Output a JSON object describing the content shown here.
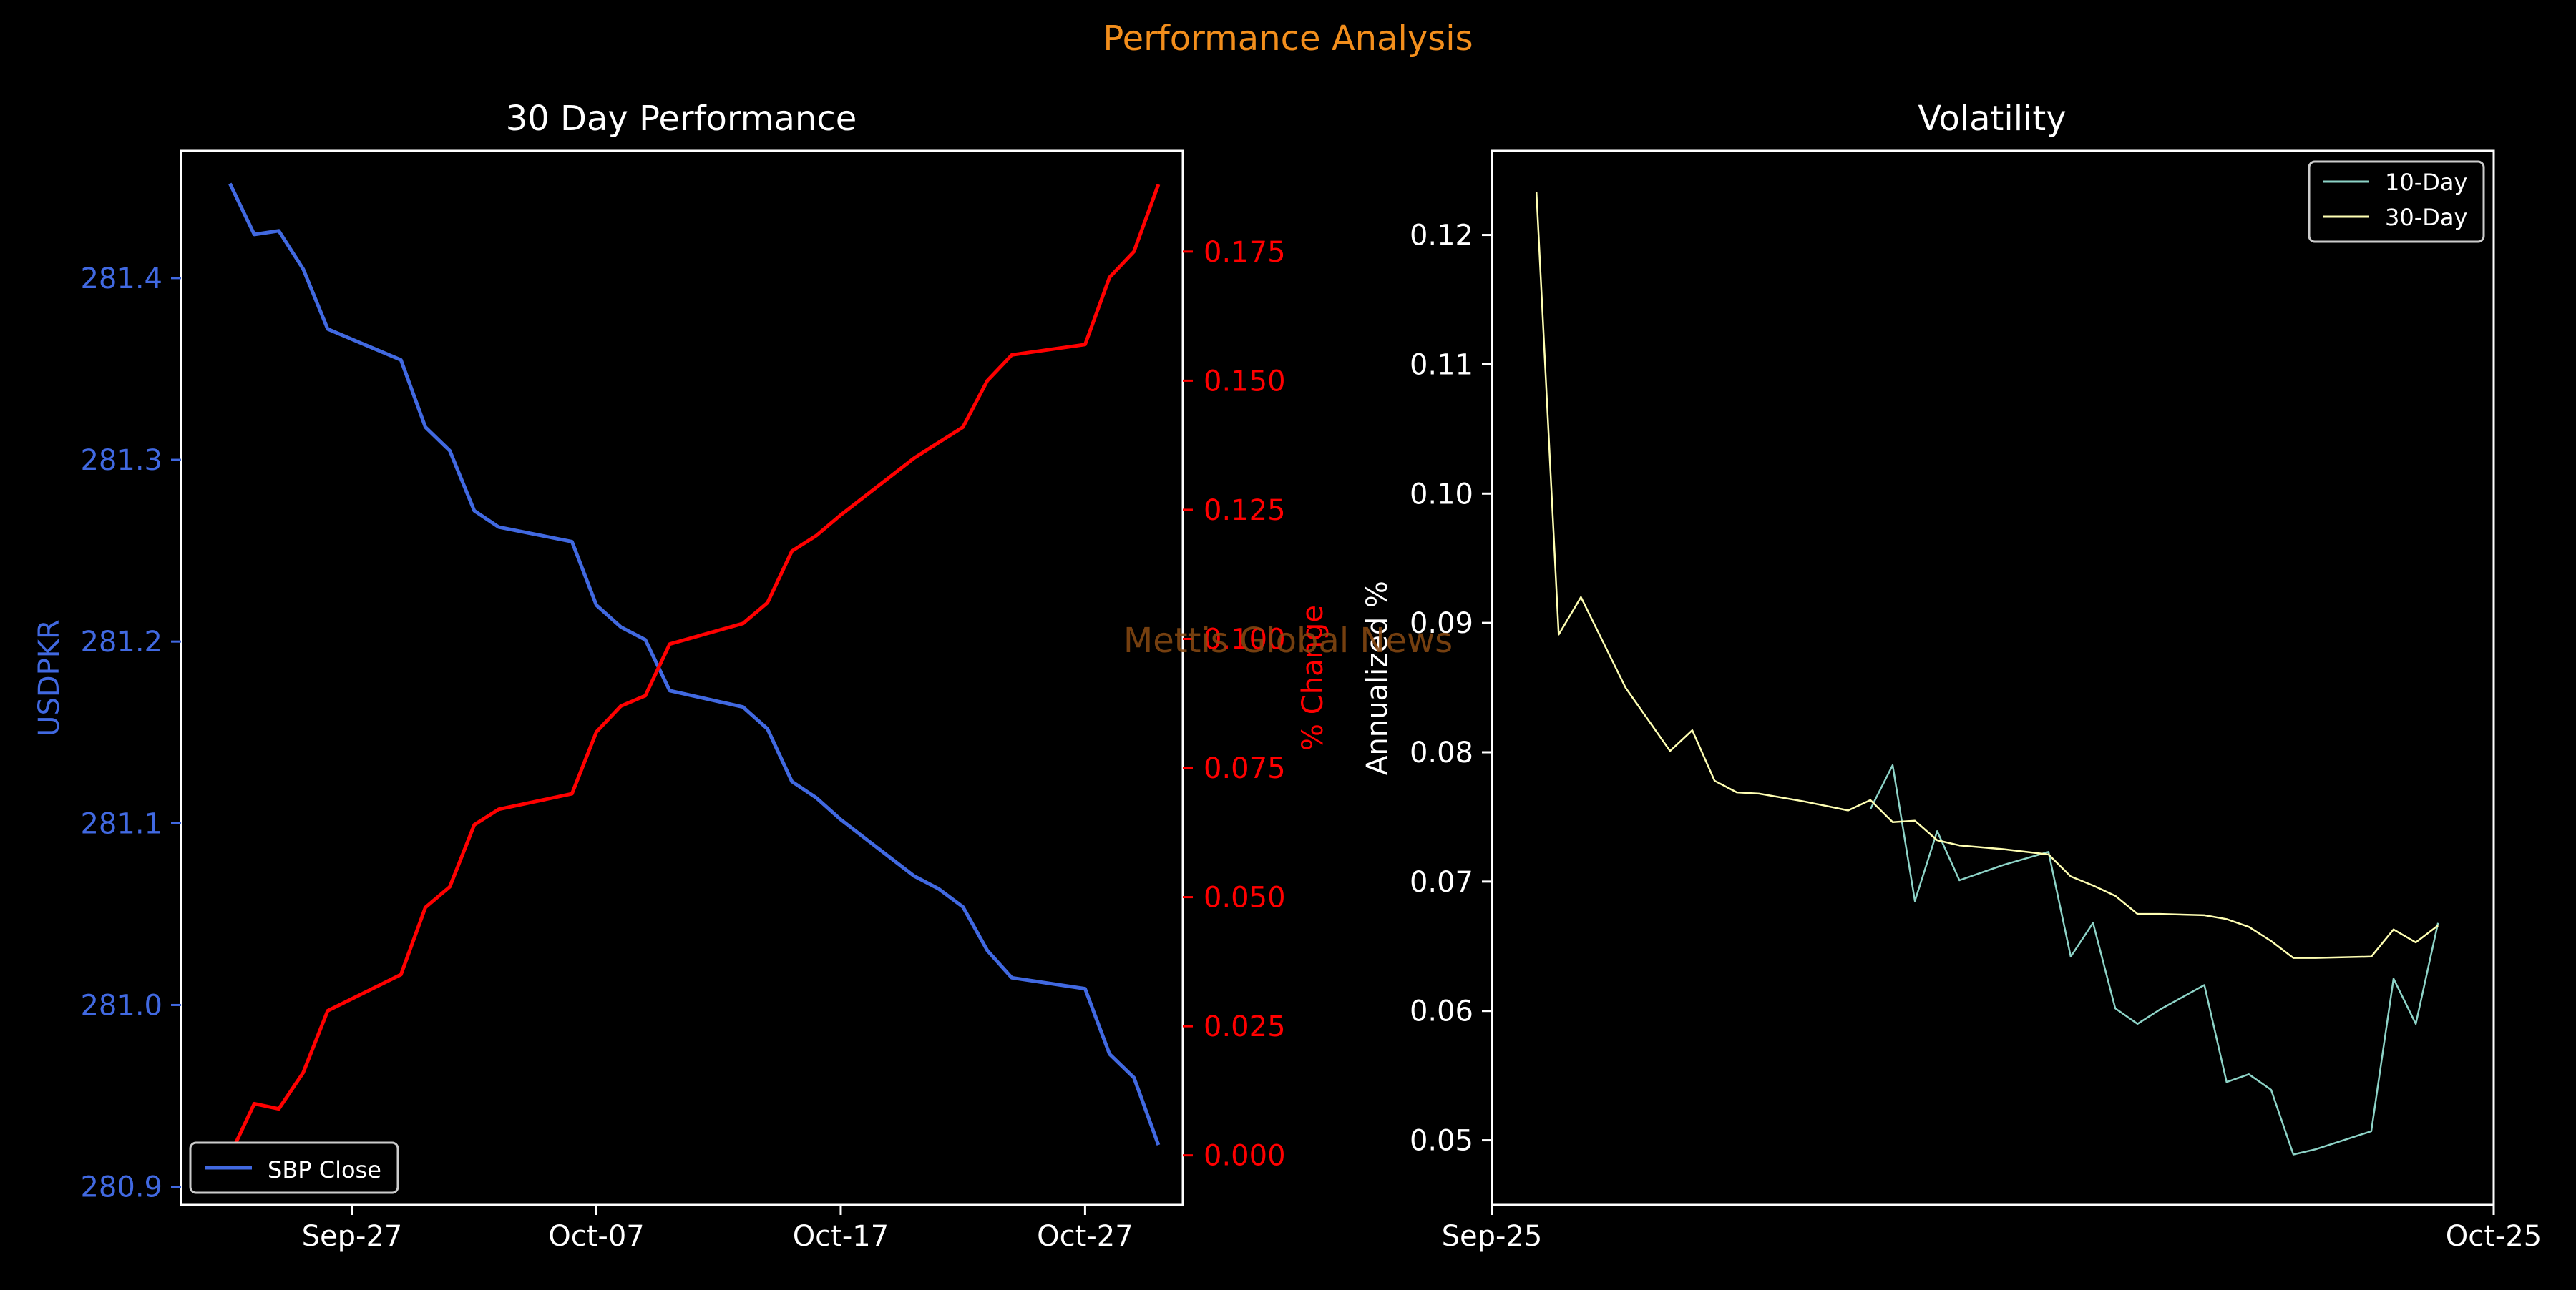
{
  "figure": {
    "suptitle": "Performance Analysis",
    "watermark": "Mettis Global News"
  },
  "colors": {
    "background": "#000000",
    "suptitle": "#f28e1c",
    "watermark": "#8a4a12",
    "close": "#4169e1",
    "change": "#ff0000",
    "vol10": "#8dd3c7",
    "vol30": "#ffffb3",
    "axis": "#ffffff"
  },
  "chart_data": [
    {
      "type": "line",
      "title": "30 Day Performance",
      "ylabel": "USDPKR",
      "y2label": "% Change",
      "ylim": [
        280.89,
        281.47
      ],
      "y2lim": [
        -0.0096,
        0.1945
      ],
      "xlim": [
        "2025-09-20",
        "2025-10-31"
      ],
      "xticks": [
        "2025-09-27",
        "2025-10-07",
        "2025-10-17",
        "2025-10-27"
      ],
      "xtick_labels": [
        "Sep-27",
        "Oct-07",
        "Oct-17",
        "Oct-27"
      ],
      "yticks": [
        280.9,
        281.0,
        281.1,
        281.2,
        281.3,
        281.4
      ],
      "ytick_labels": [
        "280.9",
        "281.0",
        "281.1",
        "281.2",
        "281.3",
        "281.4"
      ],
      "y2ticks": [
        0.0,
        0.025,
        0.05,
        0.075,
        0.1,
        0.125,
        0.15,
        0.175
      ],
      "y2tick_labels": [
        "0.000",
        "0.025",
        "0.050",
        "0.075",
        "0.100",
        "0.125",
        "0.150",
        "0.175"
      ],
      "legend": {
        "entries": [
          "SBP Close"
        ],
        "placement": "lower-left"
      },
      "x": [
        "2025-09-22",
        "2025-09-23",
        "2025-09-24",
        "2025-09-25",
        "2025-09-26",
        "2025-09-29",
        "2025-09-30",
        "2025-10-01",
        "2025-10-02",
        "2025-10-03",
        "2025-10-06",
        "2025-10-07",
        "2025-10-08",
        "2025-10-09",
        "2025-10-10",
        "2025-10-13",
        "2025-10-14",
        "2025-10-15",
        "2025-10-16",
        "2025-10-17",
        "2025-10-20",
        "2025-10-21",
        "2025-10-22",
        "2025-10-23",
        "2025-10-24",
        "2025-10-27",
        "2025-10-28",
        "2025-10-29",
        "2025-10-30"
      ],
      "series": [
        {
          "name": "SBP Close",
          "axis": "left",
          "values": [
            281.452,
            281.424,
            281.426,
            281.405,
            281.372,
            281.355,
            281.318,
            281.305,
            281.272,
            281.263,
            281.255,
            281.22,
            281.208,
            281.201,
            281.173,
            281.164,
            281.152,
            281.123,
            281.114,
            281.102,
            281.071,
            281.064,
            281.054,
            281.03,
            281.015,
            281.009,
            280.973,
            280.96,
            280.923
          ]
        },
        {
          "axis": "right",
          "values": [
            0.0,
            0.01,
            0.009,
            0.016,
            0.028,
            0.035,
            0.048,
            0.052,
            0.064,
            0.067,
            0.07,
            0.082,
            0.087,
            0.089,
            0.099,
            0.103,
            0.107,
            0.117,
            0.12,
            0.124,
            0.135,
            0.138,
            0.141,
            0.15,
            0.155,
            0.157,
            0.17,
            0.175,
            0.188
          ]
        }
      ]
    },
    {
      "type": "line",
      "title": "Volatility",
      "ylabel": "Annualized %",
      "ylim": [
        0.045,
        0.1265
      ],
      "xlim": [
        "2025-09-25",
        "2025-10-25"
      ],
      "xticks": [
        "2025-09-25",
        "2025-10-25"
      ],
      "xtick_labels": [
        "Sep-25",
        "Oct-25"
      ],
      "yticks": [
        0.05,
        0.06,
        0.07,
        0.08,
        0.09,
        0.1,
        0.11,
        0.12
      ],
      "ytick_labels": [
        "0.05",
        "0.06",
        "0.07",
        "0.08",
        "0.09",
        "0.10",
        "0.11",
        "0.12"
      ],
      "legend": {
        "entries": [
          "10-Day",
          "30-Day"
        ],
        "placement": "top-right"
      },
      "x": [
        "2025-09-26 08:00",
        "2025-09-27",
        "2025-09-27 16:00",
        "2025-09-29",
        "2025-09-30 08:00",
        "2025-10-01",
        "2025-10-01 16:00",
        "2025-10-02 08:00",
        "2025-10-03",
        "2025-10-04 08:00",
        "2025-10-05 16:00",
        "2025-10-06 08:00",
        "2025-10-07",
        "2025-10-07 16:00",
        "2025-10-08 08:00",
        "2025-10-09",
        "2025-10-10 08:00",
        "2025-10-11 16:00",
        "2025-10-12 08:00",
        "2025-10-13",
        "2025-10-13 16:00",
        "2025-10-14 08:00",
        "2025-10-15",
        "2025-10-16 08:00",
        "2025-10-17",
        "2025-10-17 16:00",
        "2025-10-18 08:00",
        "2025-10-19",
        "2025-10-19 16:00",
        "2025-10-21 08:00",
        "2025-10-22",
        "2025-10-22 16:00",
        "2025-10-23 08:00",
        "2025-10-24"
      ],
      "series": [
        {
          "name": "10-Day",
          "values": [
            null,
            null,
            null,
            null,
            null,
            null,
            null,
            null,
            null,
            null,
            null,
            0.0756,
            0.079,
            0.0685,
            0.0739,
            0.0701,
            0.0713,
            0.0723,
            0.0642,
            0.0668,
            0.0602,
            0.059,
            0.0601,
            0.062,
            0.0545,
            0.0551,
            0.0539,
            0.0489,
            0.0493,
            0.0507,
            0.0625,
            0.059,
            0.0668,
            null
          ]
        },
        {
          "name": "30-Day",
          "values": [
            0.1233,
            0.0891,
            0.092,
            0.085,
            0.0801,
            0.0817,
            0.0778,
            0.0769,
            0.0768,
            0.0762,
            0.0755,
            0.0763,
            0.0746,
            0.0747,
            0.0732,
            0.0728,
            0.0725,
            0.0721,
            0.0704,
            0.0697,
            0.0689,
            0.0675,
            0.0675,
            0.0674,
            0.0671,
            0.0665,
            0.0654,
            0.0641,
            0.0641,
            0.0642,
            0.0663,
            0.0653,
            0.0666,
            null
          ]
        }
      ]
    }
  ]
}
